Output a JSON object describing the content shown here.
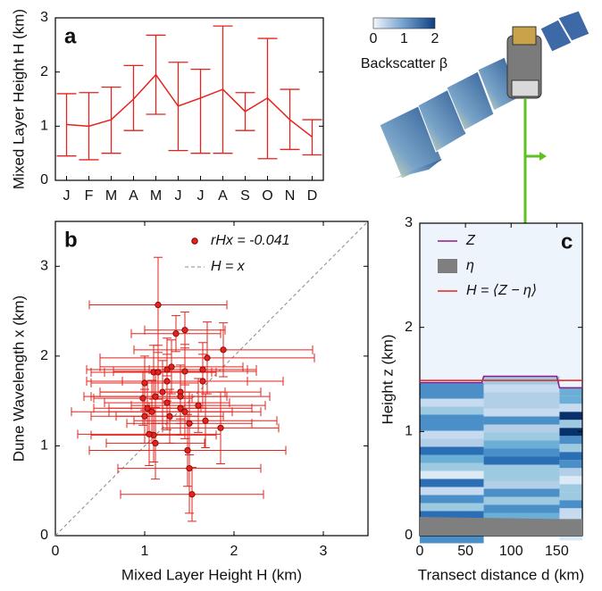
{
  "chart_data": [
    {
      "type": "line",
      "label": "a",
      "ylabel": "Mixed Layer Height H (km)",
      "categories": [
        "J",
        "F",
        "M",
        "A",
        "M",
        "J",
        "J",
        "A",
        "S",
        "O",
        "N",
        "D"
      ],
      "series": [
        {
          "color": "#e3231c",
          "values": [
            1.03,
            1.0,
            1.12,
            1.5,
            1.95,
            1.37,
            1.52,
            1.68,
            1.27,
            1.52,
            1.12,
            0.8
          ],
          "lower": [
            0.45,
            0.38,
            0.5,
            0.92,
            1.22,
            0.55,
            0.5,
            0.5,
            0.92,
            0.4,
            0.57,
            0.47
          ],
          "upper": [
            1.6,
            1.62,
            1.72,
            2.12,
            2.68,
            2.18,
            2.05,
            2.85,
            1.62,
            2.62,
            1.68,
            1.12
          ]
        }
      ],
      "ylim": [
        0,
        3
      ],
      "yticks": [
        0,
        1,
        2,
        3
      ]
    },
    {
      "type": "scatter",
      "label": "b",
      "xlabel": "Mixed Layer Height H (km)",
      "ylabel": "Dune Wavelength x (km)",
      "series": [
        {
          "name": "rHx = -0.041",
          "color": "#e3231c",
          "x": [
            1.15,
            1.45,
            1.35,
            1.88,
            1.7,
            1.3,
            1.1,
            1.15,
            1.25,
            1.65,
            1.45,
            1.0,
            1.25,
            1.65,
            1.2,
            1.4,
            0.98,
            1.12,
            1.4,
            1.25,
            1.03,
            1.4,
            1.6,
            1.08,
            1.45,
            1.0,
            1.28,
            1.68,
            1.5,
            1.85,
            1.1,
            1.05,
            1.12,
            1.48,
            1.5,
            1.53
          ],
          "values": [
            2.57,
            2.29,
            2.25,
            2.07,
            1.98,
            1.88,
            1.82,
            1.82,
            1.85,
            1.85,
            1.83,
            1.7,
            1.72,
            1.72,
            1.6,
            1.6,
            1.53,
            1.55,
            1.55,
            1.48,
            1.42,
            1.42,
            1.45,
            1.38,
            1.38,
            1.33,
            1.33,
            1.28,
            1.25,
            1.2,
            1.12,
            1.13,
            1.03,
            0.95,
            0.75,
            0.46
          ],
          "xerr": [
            0.77,
            0.45,
            0.5,
            1.0,
            1.2,
            0.8,
            0.7,
            0.6,
            0.9,
            0.6,
            0.8,
            0.6,
            0.9,
            0.9,
            0.7,
            0.9,
            0.55,
            0.8,
            1.0,
            0.7,
            0.6,
            0.8,
            0.75,
            0.9,
            0.85,
            0.6,
            0.6,
            0.8,
            0.7,
            0.65,
            0.7,
            0.8,
            0.55,
            1.1,
            0.8,
            0.8
          ],
          "yerr": [
            0.53,
            0.2,
            0.2,
            0.3,
            0.4,
            0.3,
            0.3,
            0.3,
            0.35,
            0.3,
            0.3,
            0.3,
            0.3,
            0.3,
            0.35,
            0.3,
            0.3,
            0.3,
            0.3,
            0.3,
            0.3,
            0.3,
            0.3,
            0.35,
            0.3,
            0.3,
            0.3,
            0.3,
            0.35,
            0.4,
            0.3,
            0.35,
            0.4,
            0.4,
            0.5,
            0.3
          ]
        }
      ],
      "reference_line": {
        "name": "H = x",
        "color": "#888888"
      },
      "xlim": [
        0,
        3.5
      ],
      "ylim": [
        0,
        3.5
      ],
      "xticks": [
        0,
        1,
        2,
        3
      ],
      "yticks": [
        0,
        1,
        2,
        3
      ],
      "legend": "upper-left"
    },
    {
      "type": "line",
      "label": "c",
      "xlabel": "Transect distance d (km)",
      "ylabel": "Height z (km)",
      "x": [
        0,
        68,
        70,
        150,
        153,
        178
      ],
      "series": [
        {
          "name": "Z",
          "color": "#8b1a8b",
          "values": [
            1.47,
            1.47,
            1.53,
            1.53,
            1.42,
            1.42
          ]
        },
        {
          "name": "η",
          "color": "#7f7f7f",
          "area": true,
          "values": [
            0.18,
            0.17,
            0.17,
            0.16,
            0.16,
            0.16
          ]
        },
        {
          "name": "H = ⟨Z − η⟩",
          "color": "#e3231c",
          "values": [
            1.49,
            1.49,
            1.49,
            1.49,
            1.49,
            1.49
          ]
        }
      ],
      "colorbar": {
        "label": "Backscatter β",
        "lim": [
          0,
          2
        ],
        "ticks": [
          0,
          1,
          2
        ]
      },
      "xlim": [
        0,
        178
      ],
      "ylim": [
        0,
        3
      ],
      "xticks": [
        0,
        50,
        100,
        150
      ],
      "yticks": [
        0,
        1,
        2,
        3
      ],
      "legend": "upper-left"
    }
  ]
}
